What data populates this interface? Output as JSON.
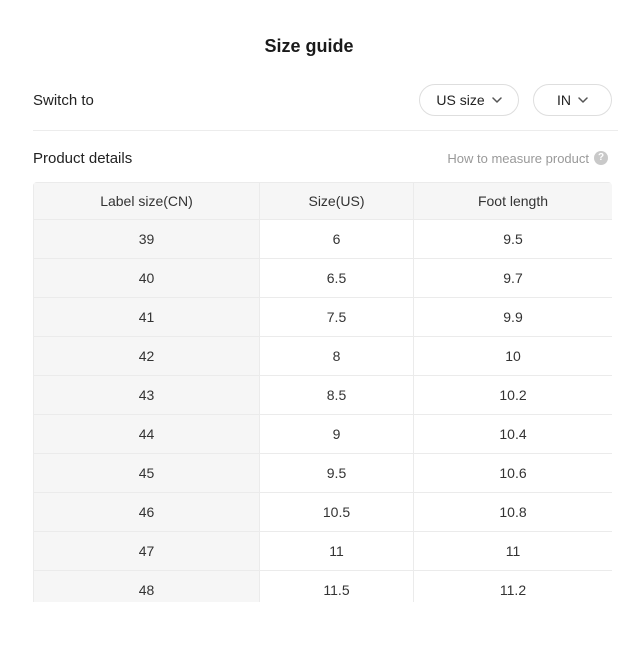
{
  "title": "Size guide",
  "switch": {
    "label": "Switch to",
    "unit_button_label": "US size",
    "region_button_label": "IN"
  },
  "section": {
    "product_details_label": "Product details",
    "how_to_measure_label": "How to measure product",
    "help_icon_glyph": "?"
  },
  "table": {
    "headers": [
      "Label size(CN)",
      "Size(US)",
      "Foot length"
    ],
    "rows": [
      [
        "39",
        "6",
        "9.5"
      ],
      [
        "40",
        "6.5",
        "9.7"
      ],
      [
        "41",
        "7.5",
        "9.9"
      ],
      [
        "42",
        "8",
        "10"
      ],
      [
        "43",
        "8.5",
        "10.2"
      ],
      [
        "44",
        "9",
        "10.4"
      ],
      [
        "45",
        "9.5",
        "10.6"
      ],
      [
        "46",
        "10.5",
        "10.8"
      ],
      [
        "47",
        "11",
        "11"
      ],
      [
        "48",
        "11.5",
        "11.2"
      ]
    ]
  },
  "colors": {
    "header_bg": "#f6f6f6",
    "border": "#ebebeb",
    "muted_text": "#999999",
    "text": "#333333"
  }
}
